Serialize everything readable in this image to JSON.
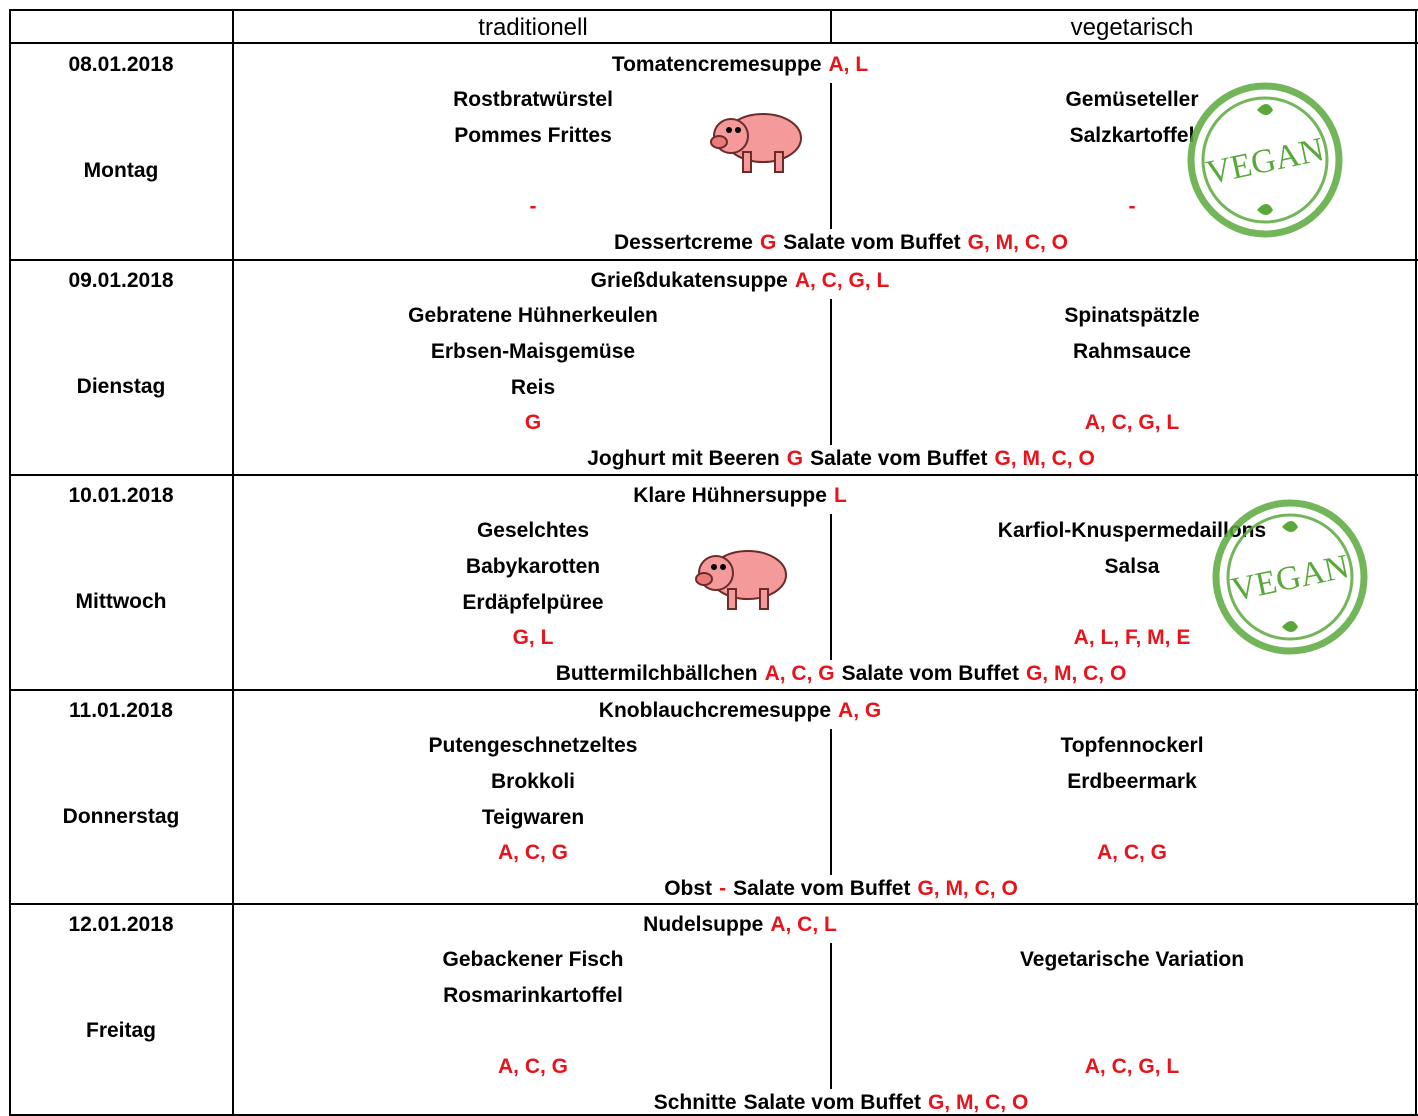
{
  "header": {
    "traditional": "traditionell",
    "vegetarian": "vegetarisch"
  },
  "days": [
    {
      "date": "08.01.2018",
      "weekday": "Montag",
      "soup": {
        "name": "Tomatencremesuppe",
        "allergens": "A, L"
      },
      "traditional": {
        "items": [
          "Rostbratwürstel",
          "Pommes Frittes"
        ],
        "allergens": "-"
      },
      "vegetarian": {
        "items": [
          "Gemüseteller",
          "Salzkartoffel"
        ],
        "allergens": "-",
        "badge": "VEGAN"
      },
      "dessert": {
        "name": "Dessertcreme",
        "allergens": "G"
      },
      "salad": {
        "name": "Salate vom Buffet",
        "allergens": "G, M, C, O"
      }
    },
    {
      "date": "09.01.2018",
      "weekday": "Dienstag",
      "soup": {
        "name": "Grießdukatensuppe",
        "allergens": "A, C, G, L"
      },
      "traditional": {
        "items": [
          "Gebratene Hühnerkeulen",
          "Erbsen-Maisgemüse",
          "Reis"
        ],
        "allergens": "G"
      },
      "vegetarian": {
        "items": [
          "Spinatspätzle",
          "Rahmsauce"
        ],
        "allergens": "A, C, G, L"
      },
      "dessert": {
        "name": "Joghurt mit Beeren",
        "allergens": "G"
      },
      "salad": {
        "name": "Salate vom Buffet",
        "allergens": "G, M, C, O"
      }
    },
    {
      "date": "10.01.2018",
      "weekday": "Mittwoch",
      "soup": {
        "name": "Klare Hühnersuppe",
        "allergens": "L"
      },
      "traditional": {
        "items": [
          "Geselchtes",
          "Babykarotten",
          "Erdäpfelpüree"
        ],
        "allergens": "G, L"
      },
      "vegetarian": {
        "items": [
          "Karfiol-Knuspermedaillons",
          "Salsa"
        ],
        "allergens": "A, L, F, M, E",
        "badge": "VEGAN"
      },
      "dessert": {
        "name": "Buttermilchbällchen",
        "allergens": "A, C, G"
      },
      "salad": {
        "name": "Salate vom Buffet",
        "allergens": "G, M, C, O"
      }
    },
    {
      "date": "11.01.2018",
      "weekday": "Donnerstag",
      "soup": {
        "name": "Knoblauchcremesuppe",
        "allergens": "A, G"
      },
      "traditional": {
        "items": [
          "Putengeschnetzeltes",
          "Brokkoli",
          "Teigwaren"
        ],
        "allergens": "A, C, G"
      },
      "vegetarian": {
        "items": [
          "Topfennockerl",
          "Erdbeermark"
        ],
        "allergens": "A, C, G"
      },
      "dessert": {
        "name": "Obst",
        "allergens": "-"
      },
      "salad": {
        "name": "Salate vom Buffet",
        "allergens": "G, M, C, O"
      }
    },
    {
      "date": "12.01.2018",
      "weekday": "Freitag",
      "soup": {
        "name": "Nudelsuppe",
        "allergens": "A, C, L"
      },
      "traditional": {
        "items": [
          "Gebackener Fisch",
          "Rosmarinkartoffel"
        ],
        "allergens": "A, C, G"
      },
      "vegetarian": {
        "items": [
          "Vegetarische Variation"
        ],
        "allergens": "A, C, G, L"
      },
      "dessert": {
        "name": "Schnitte"
      },
      "salad": {
        "name": "Salate vom Buffet",
        "allergens": "G, M, C, O"
      }
    }
  ]
}
